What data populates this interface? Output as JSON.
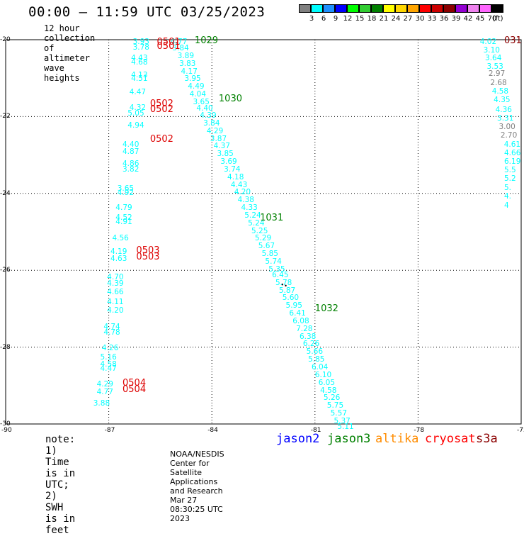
{
  "title": "00:00 – 11:59 UTC 03/25/2023",
  "subtitle": "12 hour collection of altimeter wave heights",
  "legend": {
    "unit": "(ft)",
    "bins": [
      {
        "label": "3",
        "color": "#808080"
      },
      {
        "label": "6",
        "color": "#00ffff"
      },
      {
        "label": "9",
        "color": "#1e90ff"
      },
      {
        "label": "12",
        "color": "#0000ff"
      },
      {
        "label": "15",
        "color": "#00ff00"
      },
      {
        "label": "18",
        "color": "#32cd32"
      },
      {
        "label": "21",
        "color": "#008000"
      },
      {
        "label": "24",
        "color": "#ffff00"
      },
      {
        "label": "27",
        "color": "#ffd700"
      },
      {
        "label": "30",
        "color": "#ffa500"
      },
      {
        "label": "33",
        "color": "#ff0000"
      },
      {
        "label": "36",
        "color": "#cc0000"
      },
      {
        "label": "39",
        "color": "#8b0000"
      },
      {
        "label": "42",
        "color": "#9400d3"
      },
      {
        "label": "45",
        "color": "#ee82ee"
      },
      {
        "label": "70",
        "color": "#ff66ff"
      },
      {
        "label": "",
        "color": "#000000"
      }
    ]
  },
  "map": {
    "lon_range": [
      -90,
      -75
    ],
    "lat_range": [
      -30,
      -20
    ],
    "lon_ticks": [
      "-90",
      "-87",
      "-84",
      "-81",
      "-78",
      "-75"
    ],
    "lat_ticks": [
      "-20",
      "-22",
      "-24",
      "-26",
      "-28",
      "-30"
    ]
  },
  "note": "note: 1) Time is in UTC; 2) SWH is in feet",
  "satellites": [
    {
      "name": "jason2",
      "color": "#0000ff"
    },
    {
      "name": "jason3",
      "color": "#008000"
    },
    {
      "name": "altika",
      "color": "#ff8c00"
    },
    {
      "name": "cryosat",
      "color": "#ff0000"
    },
    {
      "name": "s3a",
      "color": "#8b0000"
    }
  ],
  "credit": "NOAA/NESDIS Center for Satellite Applications and Research     Mar 27 08:30:25 UTC 2023",
  "pass_labels": [
    {
      "text": "0501",
      "color": "#dd0000",
      "lon": -85.6,
      "lat": -20.02
    },
    {
      "text": "0501",
      "color": "#dd0000",
      "lon": -85.6,
      "lat": -20.12
    },
    {
      "text": "1029",
      "color": "#008000",
      "lon": -84.5,
      "lat": -19.98
    },
    {
      "text": "1030",
      "color": "#008000",
      "lon": -83.8,
      "lat": -21.5
    },
    {
      "text": "0502",
      "color": "#dd0000",
      "lon": -85.8,
      "lat": -21.62
    },
    {
      "text": "0502",
      "color": "#dd0000",
      "lon": -85.8,
      "lat": -21.78
    },
    {
      "text": "0502",
      "color": "#dd0000",
      "lon": -85.8,
      "lat": -22.55
    },
    {
      "text": "1031",
      "color": "#008000",
      "lon": -82.6,
      "lat": -24.6
    },
    {
      "text": "0503",
      "color": "#dd0000",
      "lon": -86.2,
      "lat": -25.45
    },
    {
      "text": "0503",
      "color": "#dd0000",
      "lon": -86.2,
      "lat": -25.6
    },
    {
      "text": "1032",
      "color": "#008000",
      "lon": -81.0,
      "lat": -26.95
    },
    {
      "text": "0504",
      "color": "#dd0000",
      "lon": -86.6,
      "lat": -28.9
    },
    {
      "text": "0504",
      "color": "#dd0000",
      "lon": -86.6,
      "lat": -29.05
    },
    {
      "text": "031",
      "color": "#8b0000",
      "lon": -75.0,
      "lat": -19.98
    }
  ],
  "swh_values": [
    {
      "v": "3.93",
      "c": "#00ffff",
      "lon": -86.3,
      "lat": -19.98
    },
    {
      "v": "3.78",
      "c": "#00ffff",
      "lon": -86.3,
      "lat": -20.12
    },
    {
      "v": "4.77",
      "c": "#00ffff",
      "lon": -85.2,
      "lat": -19.98
    },
    {
      "v": "3.84",
      "c": "#00ffff",
      "lon": -85.15,
      "lat": -20.15
    },
    {
      "v": "3.89",
      "c": "#00ffff",
      "lon": -85.0,
      "lat": -20.35
    },
    {
      "v": "3.83",
      "c": "#00ffff",
      "lon": -84.95,
      "lat": -20.55
    },
    {
      "v": "4.17",
      "c": "#00ffff",
      "lon": -84.9,
      "lat": -20.75
    },
    {
      "v": "3.95",
      "c": "#00ffff",
      "lon": -84.8,
      "lat": -20.95
    },
    {
      "v": "4.49",
      "c": "#00ffff",
      "lon": -84.7,
      "lat": -21.15
    },
    {
      "v": "4.04",
      "c": "#00ffff",
      "lon": -84.65,
      "lat": -21.35
    },
    {
      "v": "3.65",
      "c": "#00ffff",
      "lon": -84.55,
      "lat": -21.55
    },
    {
      "v": "4.40",
      "c": "#00ffff",
      "lon": -84.45,
      "lat": -21.72
    },
    {
      "v": "4.39",
      "c": "#00ffff",
      "lon": -84.35,
      "lat": -21.9
    },
    {
      "v": "3.84",
      "c": "#00ffff",
      "lon": -84.25,
      "lat": -22.1
    },
    {
      "v": "4.29",
      "c": "#00ffff",
      "lon": -84.15,
      "lat": -22.3
    },
    {
      "v": "3.87",
      "c": "#00ffff",
      "lon": -84.05,
      "lat": -22.5
    },
    {
      "v": "4.37",
      "c": "#00ffff",
      "lon": -83.95,
      "lat": -22.7
    },
    {
      "v": "3.85",
      "c": "#00ffff",
      "lon": -83.85,
      "lat": -22.9
    },
    {
      "v": "3.69",
      "c": "#00ffff",
      "lon": -83.75,
      "lat": -23.1
    },
    {
      "v": "3.74",
      "c": "#00ffff",
      "lon": -83.65,
      "lat": -23.3
    },
    {
      "v": "4.18",
      "c": "#00ffff",
      "lon": -83.55,
      "lat": -23.5
    },
    {
      "v": "4.43",
      "c": "#00ffff",
      "lon": -83.45,
      "lat": -23.7
    },
    {
      "v": "4.20",
      "c": "#00ffff",
      "lon": -83.35,
      "lat": -23.9
    },
    {
      "v": "4.38",
      "c": "#00ffff",
      "lon": -83.25,
      "lat": -24.1
    },
    {
      "v": "4.33",
      "c": "#00ffff",
      "lon": -83.15,
      "lat": -24.3
    },
    {
      "v": "5.24",
      "c": "#00ffff",
      "lon": -83.05,
      "lat": -24.5
    },
    {
      "v": "5.24",
      "c": "#00ffff",
      "lon": -82.95,
      "lat": -24.7
    },
    {
      "v": "5.25",
      "c": "#00ffff",
      "lon": -82.85,
      "lat": -24.9
    },
    {
      "v": "5.29",
      "c": "#00ffff",
      "lon": -82.75,
      "lat": -25.1
    },
    {
      "v": "5.67",
      "c": "#00ffff",
      "lon": -82.65,
      "lat": -25.3
    },
    {
      "v": "5.85",
      "c": "#00ffff",
      "lon": -82.55,
      "lat": -25.5
    },
    {
      "v": "5.74",
      "c": "#00ffff",
      "lon": -82.45,
      "lat": -25.7
    },
    {
      "v": "5.35",
      "c": "#00ffff",
      "lon": -82.35,
      "lat": -25.9
    },
    {
      "v": "6.45",
      "c": "#00ffff",
      "lon": -82.25,
      "lat": -26.05
    },
    {
      "v": "5.78",
      "c": "#00ffff",
      "lon": -82.15,
      "lat": -26.25
    },
    {
      "v": "5.87",
      "c": "#00ffff",
      "lon": -82.05,
      "lat": -26.45
    },
    {
      "v": "5.60",
      "c": "#00ffff",
      "lon": -81.95,
      "lat": -26.65
    },
    {
      "v": "5.95",
      "c": "#00ffff",
      "lon": -81.85,
      "lat": -26.85
    },
    {
      "v": "6.41",
      "c": "#00ffff",
      "lon": -81.75,
      "lat": -27.05
    },
    {
      "v": "6.08",
      "c": "#00ffff",
      "lon": -81.65,
      "lat": -27.25
    },
    {
      "v": "7.28",
      "c": "#00ffff",
      "lon": -81.55,
      "lat": -27.45
    },
    {
      "v": "6.38",
      "c": "#00ffff",
      "lon": -81.45,
      "lat": -27.65
    },
    {
      "v": "6.26",
      "c": "#00ffff",
      "lon": -81.35,
      "lat": -27.85
    },
    {
      "v": "5.66",
      "c": "#00ffff",
      "lon": -81.25,
      "lat": -28.05
    },
    {
      "v": "5.85",
      "c": "#00ffff",
      "lon": -81.2,
      "lat": -28.25
    },
    {
      "v": "6.04",
      "c": "#00ffff",
      "lon": -81.1,
      "lat": -28.45
    },
    {
      "v": "6.10",
      "c": "#00ffff",
      "lon": -81.0,
      "lat": -28.65
    },
    {
      "v": "6.05",
      "c": "#00ffff",
      "lon": -80.9,
      "lat": -28.85
    },
    {
      "v": "4.58",
      "c": "#00ffff",
      "lon": -80.85,
      "lat": -29.05
    },
    {
      "v": "5.26",
      "c": "#00ffff",
      "lon": -80.75,
      "lat": -29.25
    },
    {
      "v": "5.75",
      "c": "#00ffff",
      "lon": -80.65,
      "lat": -29.45
    },
    {
      "v": "5.57",
      "c": "#00ffff",
      "lon": -80.55,
      "lat": -29.65
    },
    {
      "v": "5.37",
      "c": "#00ffff",
      "lon": -80.45,
      "lat": -29.85
    },
    {
      "v": "5.11",
      "c": "#00ffff",
      "lon": -80.35,
      "lat": -30.0
    },
    {
      "v": "4.43",
      "c": "#00ffff",
      "lon": -86.35,
      "lat": -20.4
    },
    {
      "v": "4.68",
      "c": "#00ffff",
      "lon": -86.35,
      "lat": -20.52
    },
    {
      "v": "4.13",
      "c": "#00ffff",
      "lon": -86.35,
      "lat": -20.85
    },
    {
      "v": "4.51",
      "c": "#00ffff",
      "lon": -86.35,
      "lat": -20.95
    },
    {
      "v": "4.47",
      "c": "#00ffff",
      "lon": -86.4,
      "lat": -21.3
    },
    {
      "v": "4.32",
      "c": "#00ffff",
      "lon": -86.4,
      "lat": -21.7
    },
    {
      "v": "5.05",
      "c": "#00ffff",
      "lon": -86.45,
      "lat": -21.85
    },
    {
      "v": "4.94",
      "c": "#00ffff",
      "lon": -86.45,
      "lat": -22.15
    },
    {
      "v": "4.40",
      "c": "#00ffff",
      "lon": -86.6,
      "lat": -22.65
    },
    {
      "v": "4.87",
      "c": "#00ffff",
      "lon": -86.6,
      "lat": -22.85
    },
    {
      "v": "4.86",
      "c": "#00ffff",
      "lon": -86.6,
      "lat": -23.15
    },
    {
      "v": "3.82",
      "c": "#00ffff",
      "lon": -86.6,
      "lat": -23.3
    },
    {
      "v": "3.65",
      "c": "#00ffff",
      "lon": -86.75,
      "lat": -23.8
    },
    {
      "v": "4.92",
      "c": "#00ffff",
      "lon": -86.75,
      "lat": -23.92
    },
    {
      "v": "4.79",
      "c": "#00ffff",
      "lon": -86.8,
      "lat": -24.3
    },
    {
      "v": "4.52",
      "c": "#00ffff",
      "lon": -86.8,
      "lat": -24.55
    },
    {
      "v": "4.91",
      "c": "#00ffff",
      "lon": -86.8,
      "lat": -24.67
    },
    {
      "v": "4.56",
      "c": "#00ffff",
      "lon": -86.9,
      "lat": -25.1
    },
    {
      "v": "4.19",
      "c": "#00ffff",
      "lon": -86.95,
      "lat": -25.45
    },
    {
      "v": "4.63",
      "c": "#00ffff",
      "lon": -86.95,
      "lat": -25.62
    },
    {
      "v": "4.70",
      "c": "#00ffff",
      "lon": -87.05,
      "lat": -26.1
    },
    {
      "v": "4.39",
      "c": "#00ffff",
      "lon": -87.05,
      "lat": -26.28
    },
    {
      "v": "4.66",
      "c": "#00ffff",
      "lon": -87.05,
      "lat": -26.5
    },
    {
      "v": "4.11",
      "c": "#00ffff",
      "lon": -87.05,
      "lat": -26.75
    },
    {
      "v": "4.20",
      "c": "#00ffff",
      "lon": -87.05,
      "lat": -26.98
    },
    {
      "v": "4.74",
      "c": "#00ffff",
      "lon": -87.15,
      "lat": -27.4
    },
    {
      "v": "4.78",
      "c": "#00ffff",
      "lon": -87.15,
      "lat": -27.55
    },
    {
      "v": "4.26",
      "c": "#00ffff",
      "lon": -87.2,
      "lat": -27.95
    },
    {
      "v": "5.16",
      "c": "#00ffff",
      "lon": -87.25,
      "lat": -28.2
    },
    {
      "v": "4.58",
      "c": "#00ffff",
      "lon": -87.25,
      "lat": -28.38
    },
    {
      "v": "4.47",
      "c": "#00ffff",
      "lon": -87.25,
      "lat": -28.48
    },
    {
      "v": "4.29",
      "c": "#00ffff",
      "lon": -87.35,
      "lat": -28.9
    },
    {
      "v": "4.77",
      "c": "#00ffff",
      "lon": -87.35,
      "lat": -29.1
    },
    {
      "v": "3.88",
      "c": "#00ffff",
      "lon": -87.45,
      "lat": -29.4
    },
    {
      "v": "4.02",
      "c": "#00ffff",
      "lon": -76.2,
      "lat": -19.98
    },
    {
      "v": "3.10",
      "c": "#00ffff",
      "lon": -76.1,
      "lat": -20.2
    },
    {
      "v": "3.64",
      "c": "#00ffff",
      "lon": -76.05,
      "lat": -20.4
    },
    {
      "v": "3.53",
      "c": "#00ffff",
      "lon": -76.0,
      "lat": -20.62
    },
    {
      "v": "2.97",
      "c": "#808080",
      "lon": -75.95,
      "lat": -20.82
    },
    {
      "v": "2.68",
      "c": "#808080",
      "lon": -75.9,
      "lat": -21.05
    },
    {
      "v": "4.58",
      "c": "#00ffff",
      "lon": -75.85,
      "lat": -21.28
    },
    {
      "v": "4.35",
      "c": "#00ffff",
      "lon": -75.8,
      "lat": -21.5
    },
    {
      "v": "4.36",
      "c": "#00ffff",
      "lon": -75.75,
      "lat": -21.75
    },
    {
      "v": "3.31",
      "c": "#00ffff",
      "lon": -75.7,
      "lat": -21.97
    },
    {
      "v": "3.00",
      "c": "#808080",
      "lon": -75.65,
      "lat": -22.2
    },
    {
      "v": "2.70",
      "c": "#808080",
      "lon": -75.6,
      "lat": -22.42
    },
    {
      "v": "4.61",
      "c": "#00ffff",
      "lon": -75.5,
      "lat": -22.65
    },
    {
      "v": "4.66",
      "c": "#00ffff",
      "lon": -75.45,
      "lat": -22.88
    },
    {
      "v": "6.19",
      "c": "#00ffff",
      "lon": -75.4,
      "lat": -23.1
    },
    {
      "v": "5.5",
      "c": "#00ffff",
      "lon": -75.35,
      "lat": -23.32
    },
    {
      "v": "5.2",
      "c": "#00ffff",
      "lon": -75.3,
      "lat": -23.55
    },
    {
      "v": "5.",
      "c": "#00ffff",
      "lon": -75.25,
      "lat": -23.78
    },
    {
      "v": "4.",
      "c": "#00ffff",
      "lon": -75.2,
      "lat": -24.0
    },
    {
      "v": "4",
      "c": "#00ffff",
      "lon": -75.15,
      "lat": -24.25
    }
  ]
}
